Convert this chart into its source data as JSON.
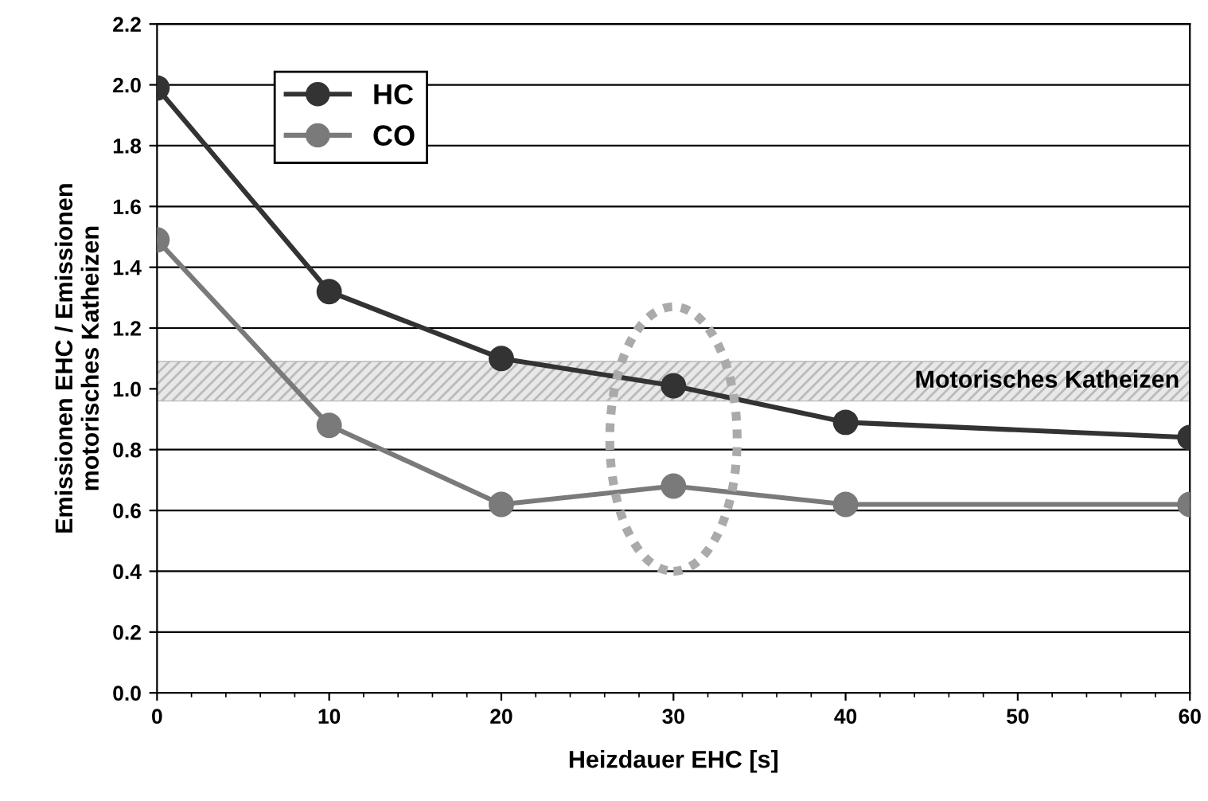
{
  "chart_data": {
    "type": "line",
    "xlabel": "Heizdauer EHC [s]",
    "ylabel": "Emissionen EHC / Emissionen\nmotorisches Katheizen",
    "x": [
      0,
      10,
      20,
      30,
      40,
      60
    ],
    "series": [
      {
        "name": "HC",
        "color": "#333333",
        "values": [
          1.99,
          1.32,
          1.1,
          1.01,
          0.89,
          0.84
        ]
      },
      {
        "name": "CO",
        "color": "#7a7a7a",
        "values": [
          1.49,
          0.88,
          0.62,
          0.68,
          0.62,
          0.62
        ]
      }
    ],
    "xlim": [
      0,
      60
    ],
    "xticks": [
      0,
      10,
      20,
      30,
      40,
      50,
      60
    ],
    "ylim": [
      0,
      2.2
    ],
    "yticks": [
      {
        "value": 0,
        "label": "0.0"
      },
      {
        "value": 0.2,
        "label": "0.2"
      },
      {
        "value": 0.4,
        "label": "0.4"
      },
      {
        "value": 0.6,
        "label": "0.6"
      },
      {
        "value": 0.8,
        "label": "0.8"
      },
      {
        "value": 1.0,
        "label": "1.0"
      },
      {
        "value": 1.2,
        "label": "1.2"
      },
      {
        "value": 1.4,
        "label": "1.4"
      },
      {
        "value": 1.6,
        "label": "1.6"
      },
      {
        "value": 1.8,
        "label": "1.8"
      },
      {
        "value": 2.0,
        "label": "2.0"
      },
      {
        "value": 2.2,
        "label": "2.2"
      }
    ],
    "bands": [
      {
        "axis": "y",
        "from": 0.96,
        "to": 1.09,
        "label": "Motorisches Katheizen",
        "color": "#bbbbbb"
      }
    ],
    "grid": "y",
    "legend": "top left",
    "marker": "circle",
    "line_style": "solid"
  }
}
